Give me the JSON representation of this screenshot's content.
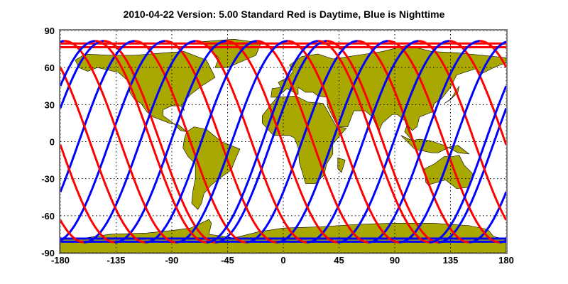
{
  "title": "2010-04-22    Version: 5.00  Standard    Red is Daytime, Blue is Nighttime",
  "chart_data": {
    "type": "map",
    "projection": "equirectangular",
    "xlim": [
      -180,
      180
    ],
    "ylim": [
      -90,
      90
    ],
    "xticks": [
      -180,
      -135,
      -90,
      -45,
      0,
      45,
      90,
      135,
      180
    ],
    "yticks": [
      90,
      60,
      30,
      0,
      -30,
      -60,
      -90
    ],
    "grid": true,
    "grid_style": "dotted",
    "land_color": "#a8a800",
    "day_color": "#ff0000",
    "night_color": "#0000ff",
    "track_max_latitude": 81.5,
    "track_spacing_deg": 24.7,
    "legend_text": "Red is Daytime, Blue is Nighttime"
  }
}
